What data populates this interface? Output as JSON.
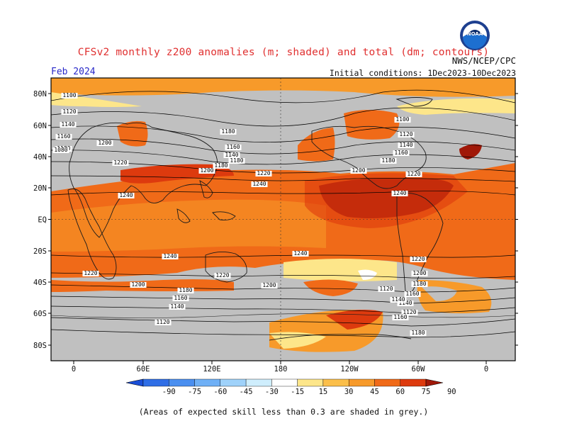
{
  "header": {
    "title": "CFSv2 monthly z200 anomalies (m; shaded) and total (dm; contours)",
    "month": "Feb 2024",
    "agency": "NWS/NCEP/CPC",
    "initial_conditions": "Initial conditions: 1Dec2023-10Dec2023"
  },
  "logo": {
    "name": "noaa-logo",
    "text": "NOAA"
  },
  "map": {
    "lat_labels": [
      "80N",
      "60N",
      "40N",
      "20N",
      "EQ",
      "20S",
      "40S",
      "60S",
      "80S"
    ],
    "lon_labels": [
      "0",
      "60E",
      "120E",
      "180",
      "120W",
      "60W",
      "0"
    ],
    "contour_labels": [
      "1100",
      "1120",
      "1140",
      "1160",
      "1180",
      "1200",
      "1220",
      "1240",
      "1240",
      "1220",
      "1200",
      "1180",
      "1160",
      "1140",
      "1120",
      "1100",
      "1120",
      "1140",
      "1160",
      "1180",
      "1200",
      "1220",
      "1240",
      "1240",
      "1220",
      "1200",
      "1180",
      "1160",
      "1140",
      "1120",
      "1080",
      "1180",
      "1140",
      "1160",
      "1180",
      "1200",
      "1220",
      "1240",
      "1220",
      "1220",
      "1200",
      "1180",
      "1160",
      "1140",
      "1120",
      "1180"
    ],
    "grey_meaning": "Areas of expected skill less than 0.3 are shaded in grey."
  },
  "colorbar": {
    "labels": [
      "-90",
      "-75",
      "-60",
      "-45",
      "-30",
      "-15",
      "15",
      "30",
      "45",
      "60",
      "75",
      "90"
    ],
    "colors": [
      "#1a4fd8",
      "#2f6ee6",
      "#4a8ff0",
      "#6fb0f6",
      "#9fd2fa",
      "#cfeefd",
      "#ffffff",
      "#fde68a",
      "#fbbf4a",
      "#f79a2a",
      "#f06a18",
      "#dd3a0e",
      "#a01808"
    ]
  },
  "colors": {
    "grey_mask": "#c0c0c0",
    "coast": "#1a1a1a",
    "contour": "#000000",
    "title": "#e03030",
    "month": "#2828c8"
  },
  "footnote": "(Areas of expected skill less than 0.3 are shaded in grey.)"
}
